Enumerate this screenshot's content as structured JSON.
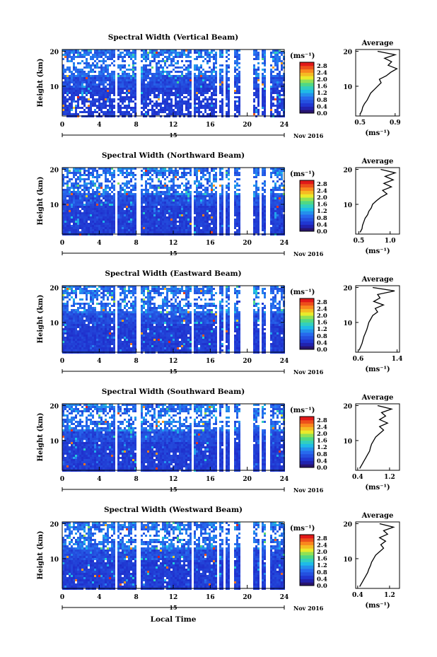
{
  "figure": {
    "time_axis_label": "Local Time",
    "month_label": "Nov 2016",
    "date_label": "15",
    "units_label": "(ms⁻¹)",
    "avg_xlabel": "(ms⁻¹)",
    "avg_title": "Average",
    "ylabel": "Height (km)"
  },
  "chart_data": [
    {
      "type": "heatmap",
      "title": "Spectral Width (Vertical Beam)",
      "xlabel": "Local Time",
      "ylabel": "Height (km)",
      "xlim": [
        0,
        24
      ],
      "ylim": [
        1.5,
        20.5
      ],
      "xticks": [
        0,
        4,
        8,
        12,
        16,
        20,
        24
      ],
      "yticks": [
        10,
        20
      ],
      "colorbar": {
        "min": 0.0,
        "max": 3.0,
        "ticks": [
          "2.8",
          "2.4",
          "2.0",
          "1.6",
          "1.2",
          "0.8",
          "0.4",
          "0.0"
        ]
      },
      "gaps_hours": [
        [
          5.7,
          5.9
        ],
        [
          8.0,
          8.4
        ],
        [
          13.8,
          14.0
        ],
        [
          16.6,
          16.8
        ],
        [
          17.3,
          17.5
        ],
        [
          18.1,
          18.4
        ],
        [
          19.1,
          20.6
        ],
        [
          21.3,
          21.5
        ],
        [
          21.9,
          22.3
        ]
      ],
      "profile": {
        "title": "Average",
        "xlabel": "(ms⁻¹)",
        "xlim": [
          0.45,
          0.95
        ],
        "xticks": [
          "0.5",
          "0.9"
        ],
        "height": [
          2,
          3,
          4,
          5,
          6,
          7,
          8,
          9,
          10,
          11,
          12,
          13,
          14,
          15,
          16,
          17,
          18,
          19,
          20
        ],
        "values": [
          0.5,
          0.52,
          0.53,
          0.55,
          0.58,
          0.6,
          0.62,
          0.66,
          0.7,
          0.74,
          0.72,
          0.8,
          0.85,
          0.92,
          0.82,
          0.86,
          0.78,
          0.9,
          0.7
        ]
      }
    },
    {
      "type": "heatmap",
      "title": "Spectral Width (Northward Beam)",
      "xlabel": "Local Time",
      "ylabel": "Height (km)",
      "xlim": [
        0,
        24
      ],
      "ylim": [
        1.5,
        20.5
      ],
      "xticks": [
        0,
        4,
        8,
        12,
        16,
        20,
        24
      ],
      "yticks": [
        10,
        20
      ],
      "colorbar": {
        "min": 0.0,
        "max": 3.0,
        "ticks": [
          "2.8",
          "2.4",
          "2.0",
          "1.6",
          "1.2",
          "0.8",
          "0.4",
          "0.0"
        ]
      },
      "gaps_hours": [
        [
          5.7,
          5.9
        ],
        [
          8.0,
          8.4
        ],
        [
          13.8,
          14.0
        ],
        [
          16.6,
          16.8
        ],
        [
          17.3,
          17.5
        ],
        [
          18.1,
          18.4
        ],
        [
          19.1,
          20.6
        ],
        [
          21.3,
          21.5
        ],
        [
          21.9,
          22.3
        ]
      ],
      "profile": {
        "title": "Average",
        "xlabel": "(ms⁻¹)",
        "xlim": [
          0.45,
          1.15
        ],
        "xticks": [
          "0.5",
          "1.0"
        ],
        "height": [
          2,
          3,
          4,
          5,
          6,
          7,
          8,
          9,
          10,
          11,
          12,
          13,
          14,
          15,
          16,
          17,
          18,
          19,
          20
        ],
        "values": [
          0.52,
          0.55,
          0.56,
          0.58,
          0.6,
          0.64,
          0.66,
          0.7,
          0.72,
          0.78,
          0.85,
          0.95,
          0.88,
          1.02,
          0.9,
          1.05,
          0.92,
          1.08,
          0.85
        ]
      }
    },
    {
      "type": "heatmap",
      "title": "Spectral Width (Eastward Beam)",
      "xlabel": "Local Time",
      "ylabel": "Height (km)",
      "xlim": [
        0,
        24
      ],
      "ylim": [
        1.5,
        20.5
      ],
      "xticks": [
        0,
        4,
        8,
        12,
        16,
        20,
        24
      ],
      "yticks": [
        10,
        20
      ],
      "colorbar": {
        "min": 0.0,
        "max": 3.0,
        "ticks": [
          "2.8",
          "2.4",
          "2.0",
          "1.6",
          "1.2",
          "0.8",
          "0.4",
          "0.0"
        ]
      },
      "gaps_hours": [
        [
          5.7,
          5.9
        ],
        [
          8.0,
          8.4
        ],
        [
          13.8,
          14.0
        ],
        [
          16.6,
          16.8
        ],
        [
          17.3,
          17.5
        ],
        [
          18.1,
          18.4
        ],
        [
          19.1,
          20.6
        ],
        [
          21.3,
          21.5
        ],
        [
          21.9,
          22.3
        ]
      ],
      "profile": {
        "title": "Average",
        "xlabel": "(ms⁻¹)",
        "xlim": [
          0.55,
          1.45
        ],
        "xticks": [
          "0.6",
          "1.4"
        ],
        "height": [
          2,
          3,
          4,
          5,
          6,
          7,
          8,
          9,
          10,
          11,
          12,
          13,
          14,
          15,
          16,
          17,
          18,
          19,
          20
        ],
        "values": [
          0.62,
          0.65,
          0.68,
          0.7,
          0.72,
          0.75,
          0.78,
          0.8,
          0.82,
          0.86,
          0.9,
          1.0,
          0.95,
          1.12,
          0.92,
          1.05,
          1.0,
          1.35,
          0.9
        ]
      }
    },
    {
      "type": "heatmap",
      "title": "Spectral Width (Southward Beam)",
      "xlabel": "Local Time",
      "ylabel": "Height (km)",
      "xlim": [
        0,
        24
      ],
      "ylim": [
        1.5,
        20.5
      ],
      "xticks": [
        0,
        4,
        8,
        12,
        16,
        20,
        24
      ],
      "yticks": [
        10,
        20
      ],
      "colorbar": {
        "min": 0.0,
        "max": 3.0,
        "ticks": [
          "2.8",
          "2.4",
          "2.0",
          "1.6",
          "1.2",
          "0.8",
          "0.4",
          "0.0"
        ]
      },
      "gaps_hours": [
        [
          5.7,
          5.9
        ],
        [
          8.0,
          8.4
        ],
        [
          13.8,
          14.0
        ],
        [
          16.6,
          16.8
        ],
        [
          17.3,
          17.5
        ],
        [
          18.1,
          18.4
        ],
        [
          19.1,
          20.6
        ],
        [
          21.3,
          21.5
        ],
        [
          21.9,
          22.3
        ]
      ],
      "profile": {
        "title": "Average",
        "xlabel": "(ms⁻¹)",
        "xlim": [
          0.35,
          1.45
        ],
        "xticks": [
          "0.4",
          "1.2"
        ],
        "height": [
          2,
          3,
          4,
          5,
          6,
          7,
          8,
          9,
          10,
          11,
          12,
          13,
          14,
          15,
          16,
          17,
          18,
          19,
          20
        ],
        "values": [
          0.45,
          0.5,
          0.55,
          0.6,
          0.65,
          0.7,
          0.72,
          0.75,
          0.8,
          0.85,
          0.95,
          1.05,
          0.95,
          1.15,
          0.95,
          1.1,
          1.0,
          1.25,
          0.9
        ]
      }
    },
    {
      "type": "heatmap",
      "title": "Spectral Width (Westward Beam)",
      "xlabel": "Local Time",
      "ylabel": "Height (km)",
      "xlim": [
        0,
        24
      ],
      "ylim": [
        1.5,
        20.5
      ],
      "xticks": [
        0,
        4,
        8,
        12,
        16,
        20,
        24
      ],
      "yticks": [
        10,
        20
      ],
      "colorbar": {
        "min": 0.0,
        "max": 3.0,
        "ticks": [
          "2.8",
          "2.4",
          "2.0",
          "1.6",
          "1.2",
          "0.8",
          "0.4",
          "0.0"
        ]
      },
      "gaps_hours": [
        [
          5.7,
          5.9
        ],
        [
          8.0,
          8.4
        ],
        [
          13.8,
          14.0
        ],
        [
          16.6,
          16.8
        ],
        [
          17.3,
          17.5
        ],
        [
          18.1,
          18.4
        ],
        [
          19.1,
          20.6
        ],
        [
          21.3,
          21.5
        ],
        [
          21.9,
          22.3
        ]
      ],
      "profile": {
        "title": "Average",
        "xlabel": "(ms⁻¹)",
        "xlim": [
          0.35,
          1.45
        ],
        "xticks": [
          "0.4",
          "1.2"
        ],
        "height": [
          2,
          3,
          4,
          5,
          6,
          7,
          8,
          9,
          10,
          11,
          12,
          13,
          14,
          15,
          16,
          17,
          18,
          19,
          20
        ],
        "values": [
          0.45,
          0.5,
          0.55,
          0.6,
          0.65,
          0.68,
          0.72,
          0.75,
          0.8,
          0.85,
          0.95,
          1.05,
          0.98,
          1.1,
          0.95,
          1.15,
          1.05,
          1.3,
          0.95
        ]
      }
    }
  ]
}
